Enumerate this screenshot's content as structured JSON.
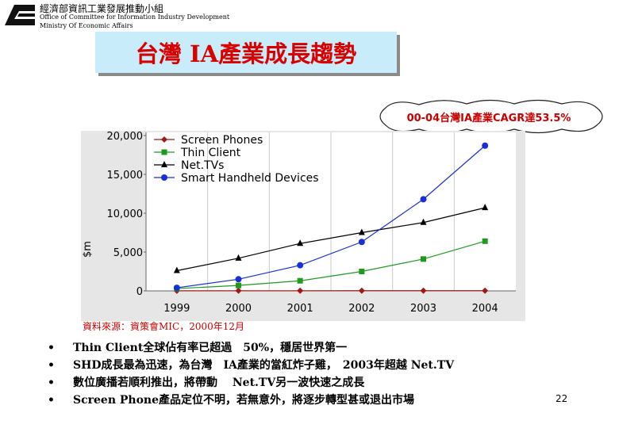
{
  "header": {
    "org_cn": "經濟部資訊工業發展推動小組",
    "org_en": "Office of Committee for Information Industry Development",
    "ministry_en": "Ministry Of Economic Affairs"
  },
  "title": "台灣 IA產業成長趨勢",
  "callout": "00-04台灣IA產業CAGR達53.5%",
  "source_note": "資料來源：資策會MIC，2000年12月",
  "bullets": [
    "Thin Client全球佔有率已超過　50%，穩居世界第一",
    "SHD成長最為迅速，為台灣　IA產業的當紅炸子雞，　2003年超越 Net.TV",
    "數位廣播若順利推出，將帶動　 Net.TV另一波快速之成長",
    "Screen Phone產品定位不明，若無意外，將逐步轉型甚或退出市場"
  ],
  "page_number": "22",
  "chart_data": {
    "type": "line",
    "x": [
      "1999",
      "2000",
      "2001",
      "2002",
      "2003",
      "2004"
    ],
    "ylabel": "$m",
    "ylim": [
      0,
      20000
    ],
    "yticks": [
      "0",
      "5,000",
      "10,000",
      "15,000",
      "20,000"
    ],
    "ytick_values": [
      0,
      5000,
      10000,
      15000,
      20000
    ],
    "grid": "vertical",
    "legend_position": "top-left",
    "series": [
      {
        "name": "Screen Phones",
        "values": [
          10,
          20,
          20,
          30,
          30,
          30
        ],
        "color": "#a01818",
        "marker": "diamond"
      },
      {
        "name": "Thin Client",
        "values": [
          300,
          700,
          1300,
          2500,
          4100,
          6400
        ],
        "color": "#1f9a1f",
        "marker": "square"
      },
      {
        "name": "Net.TVs",
        "values": [
          2600,
          4200,
          6100,
          7500,
          8800,
          10700
        ],
        "color": "#000000",
        "marker": "triangle"
      },
      {
        "name": "Smart Handheld Devices",
        "values": [
          400,
          1500,
          3300,
          6300,
          11800,
          18700
        ],
        "color": "#1a2fd6",
        "marker": "circle"
      }
    ]
  }
}
